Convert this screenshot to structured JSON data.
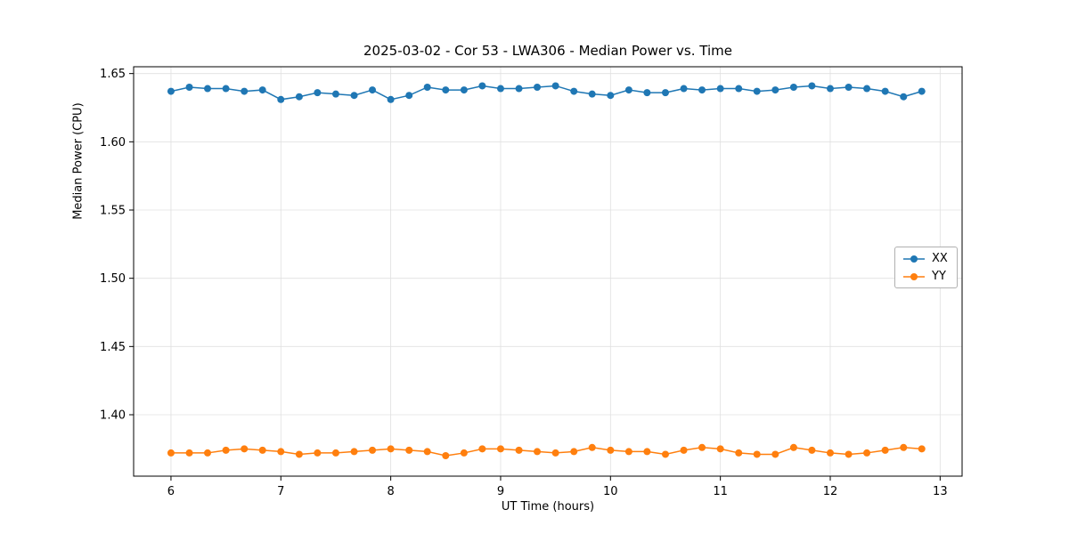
{
  "chart_data": {
    "type": "line",
    "title": "2025-03-02 - Cor 53 - LWA306 - Median Power vs. Time",
    "xlabel": "UT Time (hours)",
    "ylabel": "Median Power (CPU)",
    "xlim": [
      5.66,
      13.2
    ],
    "ylim": [
      1.355,
      1.655
    ],
    "xticks": [
      6,
      7,
      8,
      9,
      10,
      11,
      12,
      13
    ],
    "yticks": [
      1.4,
      1.45,
      1.5,
      1.55,
      1.6,
      1.65
    ],
    "grid": true,
    "legend_position": "center right",
    "x": [
      6.0,
      6.167,
      6.333,
      6.5,
      6.667,
      6.833,
      7.0,
      7.167,
      7.333,
      7.5,
      7.667,
      7.833,
      8.0,
      8.167,
      8.333,
      8.5,
      8.667,
      8.833,
      9.0,
      9.167,
      9.333,
      9.5,
      9.667,
      9.833,
      10.0,
      10.167,
      10.333,
      10.5,
      10.667,
      10.833,
      11.0,
      11.167,
      11.333,
      11.5,
      11.667,
      11.833,
      12.0,
      12.167,
      12.333,
      12.5,
      12.667,
      12.833
    ],
    "series": [
      {
        "name": "XX",
        "color": "#1f77b4",
        "values": [
          1.637,
          1.64,
          1.639,
          1.639,
          1.637,
          1.638,
          1.631,
          1.633,
          1.636,
          1.635,
          1.634,
          1.638,
          1.631,
          1.634,
          1.64,
          1.638,
          1.638,
          1.641,
          1.639,
          1.639,
          1.64,
          1.641,
          1.637,
          1.635,
          1.634,
          1.638,
          1.636,
          1.636,
          1.639,
          1.638,
          1.639,
          1.639,
          1.637,
          1.638,
          1.64,
          1.641,
          1.639,
          1.64,
          1.639,
          1.637,
          1.633,
          1.637
        ]
      },
      {
        "name": "YY",
        "color": "#ff7f0e",
        "values": [
          1.372,
          1.372,
          1.372,
          1.374,
          1.375,
          1.374,
          1.373,
          1.371,
          1.372,
          1.372,
          1.373,
          1.374,
          1.375,
          1.374,
          1.373,
          1.37,
          1.372,
          1.375,
          1.375,
          1.374,
          1.373,
          1.372,
          1.373,
          1.376,
          1.374,
          1.373,
          1.373,
          1.371,
          1.374,
          1.376,
          1.375,
          1.372,
          1.371,
          1.371,
          1.376,
          1.374,
          1.372,
          1.371,
          1.372,
          1.374,
          1.376,
          1.375
        ]
      }
    ]
  }
}
